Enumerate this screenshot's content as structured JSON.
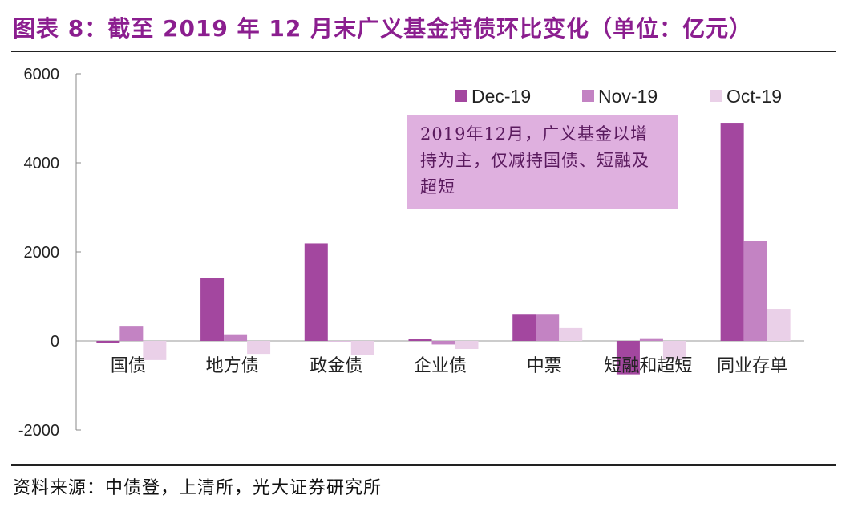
{
  "title": "图表 8：截至 2019 年 12 月末广义基金持债环比变化（单位：亿元）",
  "source": "资料来源：中债登，上清所，光大证券研究所",
  "annotation": "2019年12月，广义基金以增持为主，仅减持国债、短融及超短",
  "colors": {
    "title": "#8b1e8f",
    "annotation_bg": "#dfb0df"
  },
  "chart_data": {
    "type": "bar",
    "categories": [
      "国债",
      "地方债",
      "政金债",
      "企业债",
      "中票",
      "短融和超短",
      "同业存单"
    ],
    "series": [
      {
        "name": "Dec-19",
        "color": "#a3479f",
        "values": [
          -40,
          1420,
          2190,
          40,
          590,
          -750,
          4900
        ]
      },
      {
        "name": "Nov-19",
        "color": "#c383c3",
        "values": [
          340,
          150,
          0,
          -80,
          590,
          60,
          2250
        ]
      },
      {
        "name": "Oct-19",
        "color": "#ead0e8",
        "values": [
          -430,
          -290,
          -320,
          -180,
          290,
          -420,
          720
        ]
      }
    ],
    "yticks": [
      6000,
      4000,
      2000,
      0,
      -2000
    ],
    "ylim": [
      -2000,
      6000
    ],
    "legend": "top-right",
    "grid": false
  }
}
